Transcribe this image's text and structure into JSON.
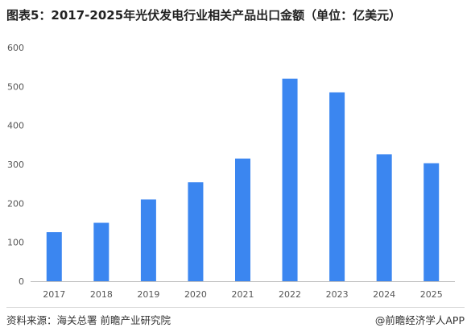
{
  "title": "图表5：2017-2025年光伏发电行业相关产品出口金额（单位：亿美元）",
  "footer": {
    "source": "资料来源：海关总署  前瞻产业研究院",
    "brand": "@前瞻经济学人APP"
  },
  "colors": {
    "bar": "#3b86f0",
    "grid": "#e6e6e6",
    "axis": "#bfbfbf",
    "tick_text": "#555555"
  },
  "chart_data": {
    "type": "bar",
    "title": "图表5：2017-2025年光伏发电行业相关产品出口金额（单位：亿美元）",
    "xlabel": "",
    "ylabel": "",
    "categories": [
      "2017",
      "2018",
      "2019",
      "2020",
      "2021",
      "2022",
      "2023",
      "2024",
      "2025"
    ],
    "values": [
      126,
      150,
      210,
      254,
      315,
      520,
      485,
      326,
      303
    ],
    "ylim": [
      0,
      600
    ],
    "yticks": [
      0,
      100,
      200,
      300,
      400,
      500,
      600
    ],
    "grid": false,
    "legend": "none"
  }
}
